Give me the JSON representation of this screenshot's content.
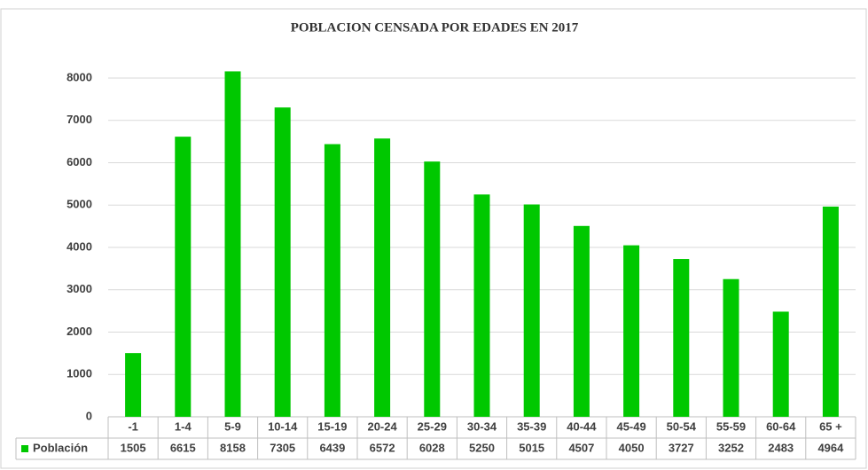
{
  "chart_data": {
    "type": "bar",
    "title": "POBLACION CENSADA POR EDADES EN 2017",
    "categories": [
      "-1",
      "1-4",
      "5-9",
      "10-14",
      "15-19",
      "20-24",
      "25-29",
      "30-34",
      "35-39",
      "40-44",
      "45-49",
      "50-54",
      "55-59",
      "60-64",
      "65 +"
    ],
    "series": [
      {
        "name": "Población",
        "color": "#00c800",
        "values": [
          1505,
          6615,
          8158,
          7305,
          6439,
          6572,
          6028,
          5250,
          5015,
          4507,
          4050,
          3727,
          3252,
          2483,
          4964
        ]
      }
    ],
    "ylim": [
      0,
      8000
    ],
    "yticks": [
      0,
      1000,
      2000,
      3000,
      4000,
      5000,
      6000,
      7000,
      8000
    ],
    "grid": true
  }
}
